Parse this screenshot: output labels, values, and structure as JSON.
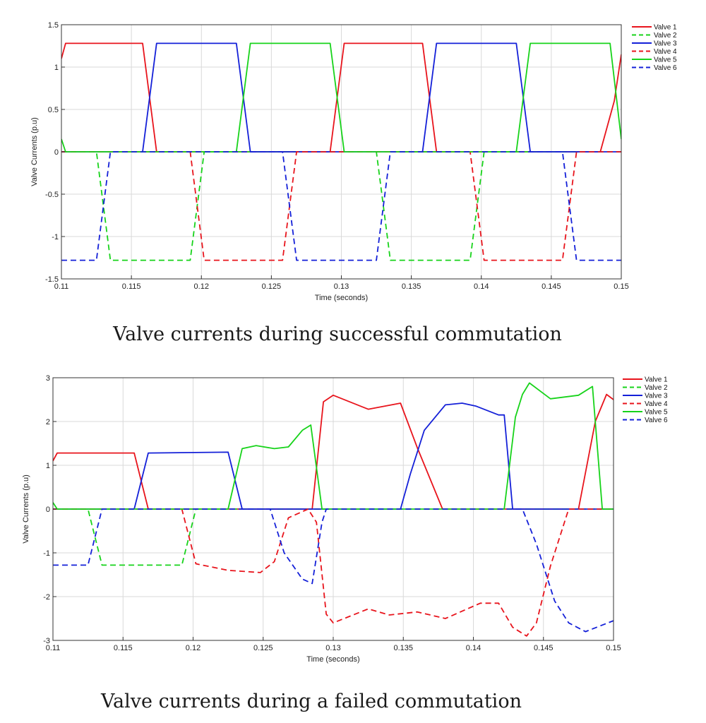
{
  "chart_data": [
    {
      "type": "line",
      "title": "",
      "caption": "Valve currents during successful commutation",
      "xlabel": "Time (seconds)",
      "ylabel": "Valve Currents (p.u)",
      "xlim": [
        0.11,
        0.15
      ],
      "ylim": [
        -1.5,
        1.5
      ],
      "xticks": [
        0.11,
        0.115,
        0.12,
        0.125,
        0.13,
        0.135,
        0.14,
        0.145,
        0.15
      ],
      "xtick_labels": [
        "0.11",
        "0.115",
        "0.12",
        "0.125",
        "0.13",
        "0.135",
        "0.14",
        "0.145",
        "0.15"
      ],
      "yticks": [
        -1.5,
        -1,
        -0.5,
        0,
        0.5,
        1,
        1.5
      ],
      "ytick_labels": [
        "-1.5",
        "-1",
        "-0.5",
        "0",
        "0.5",
        "1",
        "1.5"
      ],
      "grid": true,
      "legend_position": "outside-top-right",
      "series": [
        {
          "name": "Valve 1",
          "color": "#e8141c",
          "dash": "solid",
          "x": [
            0.11,
            0.1103,
            0.1158,
            0.1168,
            0.1292,
            0.1302,
            0.1358,
            0.1368,
            0.1485,
            0.1495,
            0.15
          ],
          "y": [
            1.1,
            1.28,
            1.28,
            0.0,
            0.0,
            1.28,
            1.28,
            0.0,
            0.0,
            0.6,
            1.15
          ]
        },
        {
          "name": "Valve 2",
          "color": "#17d31a",
          "dash": "dashed",
          "x": [
            0.11,
            0.1125,
            0.1135,
            0.1192,
            0.1202,
            0.1325,
            0.1335,
            0.1392,
            0.1402,
            0.15
          ],
          "y": [
            0.0,
            0.0,
            -1.28,
            -1.28,
            0.0,
            0.0,
            -1.28,
            -1.28,
            0.0,
            0.0
          ]
        },
        {
          "name": "Valve 3",
          "color": "#1420d8",
          "dash": "solid",
          "x": [
            0.11,
            0.1158,
            0.1168,
            0.1225,
            0.1235,
            0.1358,
            0.1368,
            0.1425,
            0.1435,
            0.15
          ],
          "y": [
            0.0,
            0.0,
            1.28,
            1.28,
            0.0,
            0.0,
            1.28,
            1.28,
            0.0,
            0.0
          ]
        },
        {
          "name": "Valve 4",
          "color": "#e8141c",
          "dash": "dashed",
          "x": [
            0.11,
            0.1192,
            0.1202,
            0.1258,
            0.1268,
            0.1392,
            0.1402,
            0.1458,
            0.1468,
            0.15
          ],
          "y": [
            0.0,
            0.0,
            -1.28,
            -1.28,
            0.0,
            0.0,
            -1.28,
            -1.28,
            0.0,
            0.0
          ]
        },
        {
          "name": "Valve 5",
          "color": "#17d31a",
          "dash": "solid",
          "x": [
            0.11,
            0.1103,
            0.1225,
            0.1235,
            0.1292,
            0.1302,
            0.1425,
            0.1435,
            0.1492,
            0.15
          ],
          "y": [
            0.15,
            0.0,
            0.0,
            1.28,
            1.28,
            0.0,
            0.0,
            1.28,
            1.28,
            0.15
          ]
        },
        {
          "name": "Valve 6",
          "color": "#1420d8",
          "dash": "dashed",
          "x": [
            0.11,
            0.1125,
            0.1135,
            0.1258,
            0.1268,
            0.1325,
            0.1335,
            0.1458,
            0.1468,
            0.15
          ],
          "y": [
            -1.28,
            -1.28,
            0.0,
            0.0,
            -1.28,
            -1.28,
            0.0,
            0.0,
            -1.28,
            -1.28
          ]
        }
      ]
    },
    {
      "type": "line",
      "title": "",
      "caption": "Valve currents during a failed commutation",
      "xlabel": "Time (seconds)",
      "ylabel": "Valve Currents (p.u)",
      "xlim": [
        0.11,
        0.15
      ],
      "ylim": [
        -3,
        3
      ],
      "xticks": [
        0.11,
        0.115,
        0.12,
        0.125,
        0.13,
        0.135,
        0.14,
        0.145,
        0.15
      ],
      "xtick_labels": [
        "0.11",
        "0.115",
        "0.12",
        "0.125",
        "0.13",
        "0.135",
        "0.14",
        "0.145",
        "0.15"
      ],
      "yticks": [
        -3,
        -2,
        -1,
        0,
        1,
        2,
        3
      ],
      "ytick_labels": [
        "-3",
        "-2",
        "-1",
        "0",
        "1",
        "2",
        "3"
      ],
      "grid": true,
      "legend_position": "outside-top-right",
      "series": [
        {
          "name": "Valve 1",
          "color": "#e8141c",
          "dash": "solid",
          "x": [
            0.11,
            0.1103,
            0.1158,
            0.1168,
            0.1285,
            0.1293,
            0.13,
            0.1325,
            0.1348,
            0.136,
            0.1378,
            0.1475,
            0.1487,
            0.1495,
            0.15
          ],
          "y": [
            1.1,
            1.28,
            1.28,
            0.0,
            0.0,
            2.45,
            2.6,
            2.28,
            2.42,
            1.4,
            0.0,
            0.0,
            2.0,
            2.62,
            2.5
          ]
        },
        {
          "name": "Valve 2",
          "color": "#17d31a",
          "dash": "dashed",
          "x": [
            0.11,
            0.1125,
            0.1135,
            0.1192,
            0.1202,
            0.15
          ],
          "y": [
            0.0,
            0.0,
            -1.28,
            -1.28,
            0.0,
            0.0
          ]
        },
        {
          "name": "Valve 3",
          "color": "#1420d8",
          "dash": "solid",
          "x": [
            0.11,
            0.1158,
            0.1168,
            0.1225,
            0.1235,
            0.1348,
            0.1355,
            0.1365,
            0.138,
            0.1392,
            0.1402,
            0.1418,
            0.1422,
            0.1428,
            0.15
          ],
          "y": [
            0.0,
            0.0,
            1.28,
            1.3,
            0.0,
            0.0,
            0.8,
            1.8,
            2.38,
            2.42,
            2.35,
            2.15,
            2.15,
            0.0,
            0.0
          ]
        },
        {
          "name": "Valve 4",
          "color": "#e8141c",
          "dash": "dashed",
          "x": [
            0.11,
            0.1192,
            0.1202,
            0.1225,
            0.1248,
            0.1258,
            0.1268,
            0.1282,
            0.1288,
            0.1295,
            0.13,
            0.1325,
            0.134,
            0.136,
            0.138,
            0.1405,
            0.1418,
            0.1428,
            0.1438,
            0.1445,
            0.1455,
            0.1468,
            0.15
          ],
          "y": [
            0.0,
            0.0,
            -1.25,
            -1.4,
            -1.45,
            -1.2,
            -0.2,
            0.0,
            -0.3,
            -2.4,
            -2.6,
            -2.28,
            -2.42,
            -2.35,
            -2.5,
            -2.15,
            -2.15,
            -2.7,
            -2.9,
            -2.6,
            -1.3,
            0.0,
            0.0
          ]
        },
        {
          "name": "Valve 5",
          "color": "#17d31a",
          "dash": "solid",
          "x": [
            0.11,
            0.1103,
            0.1225,
            0.1235,
            0.1245,
            0.1258,
            0.1268,
            0.1278,
            0.1284,
            0.1292,
            0.1295,
            0.1422,
            0.143,
            0.1435,
            0.144,
            0.1455,
            0.1475,
            0.1485,
            0.1492,
            0.15
          ],
          "y": [
            0.15,
            0.0,
            0.0,
            1.38,
            1.45,
            1.38,
            1.42,
            1.8,
            1.92,
            0.0,
            0.0,
            0.0,
            2.1,
            2.62,
            2.88,
            2.52,
            2.6,
            2.8,
            0.0,
            0.0
          ]
        },
        {
          "name": "Valve 6",
          "color": "#1420d8",
          "dash": "dashed",
          "x": [
            0.11,
            0.1125,
            0.1135,
            0.1255,
            0.1265,
            0.1278,
            0.1285,
            0.1292,
            0.1295,
            0.1435,
            0.1445,
            0.1458,
            0.1468,
            0.148,
            0.15
          ],
          "y": [
            -1.28,
            -1.28,
            0.0,
            0.0,
            -1.0,
            -1.6,
            -1.7,
            -0.3,
            0.0,
            0.0,
            -0.8,
            -2.1,
            -2.6,
            -2.8,
            -2.55
          ]
        }
      ]
    }
  ]
}
